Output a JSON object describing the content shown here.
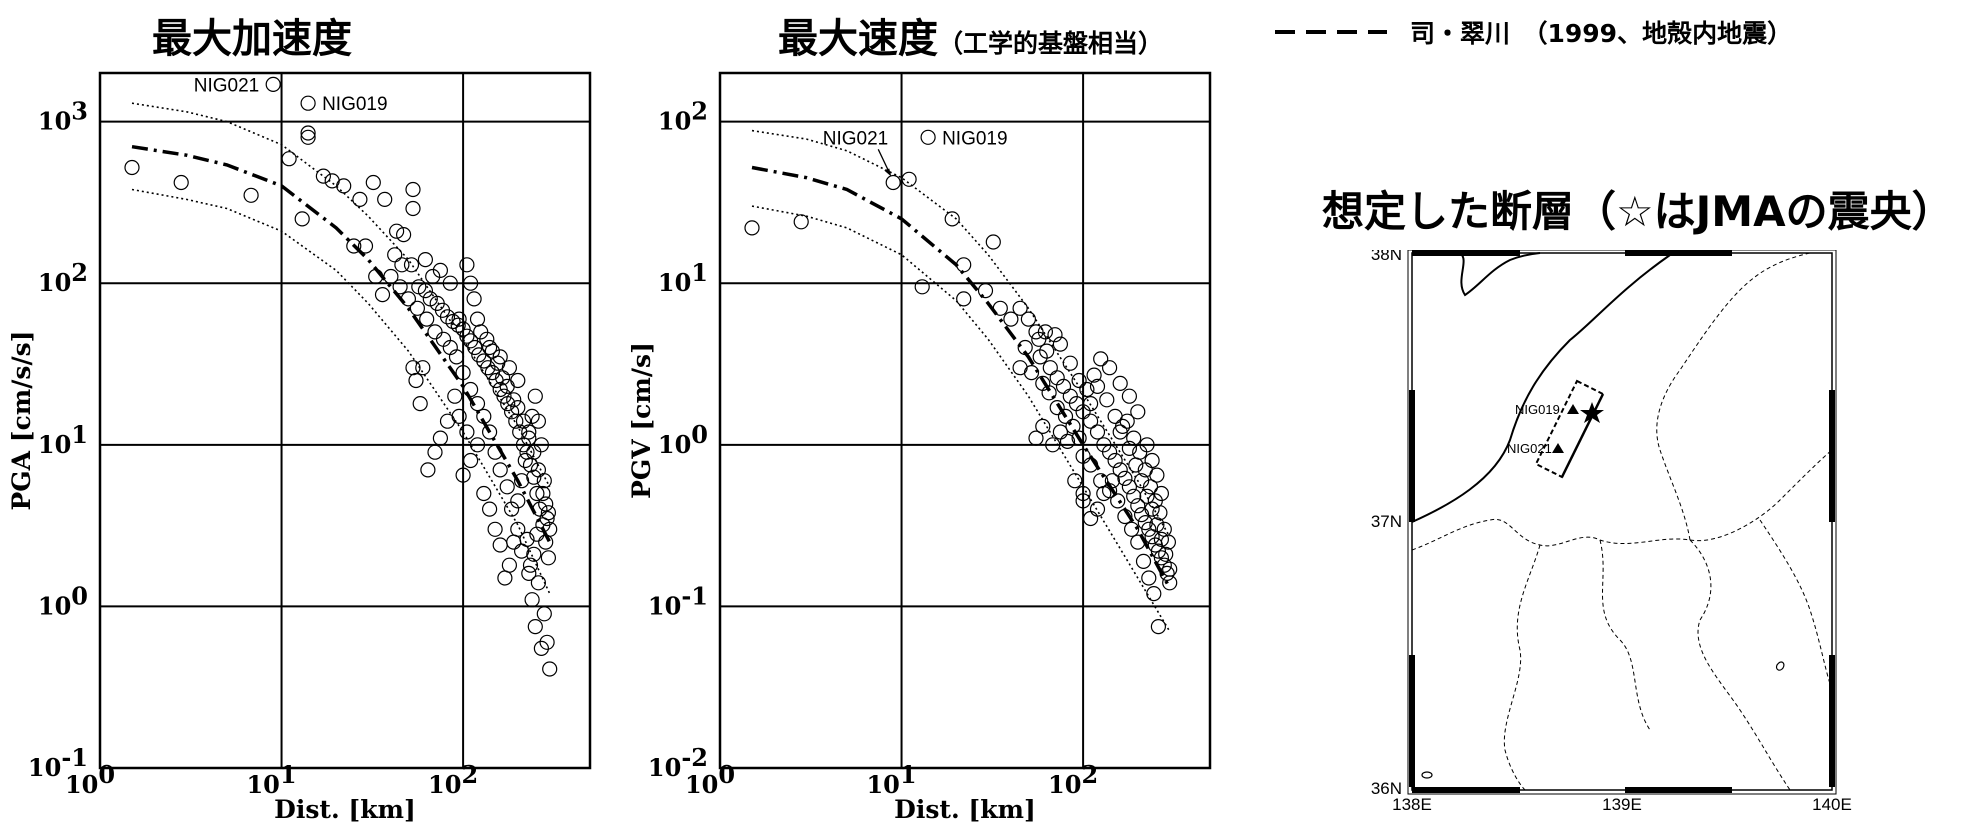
{
  "chart_data": [
    {
      "type": "scatter",
      "title": "最大加速度",
      "xlabel": "Dist. [km]",
      "ylabel": "PGA [cm/s/s]",
      "xscale": "log",
      "yscale": "log",
      "xlim": [
        1,
        500
      ],
      "ylim": [
        0.1,
        2000
      ],
      "xticks": [
        {
          "base": "10",
          "exp": "0",
          "value": 1
        },
        {
          "base": "10",
          "exp": "1",
          "value": 10
        },
        {
          "base": "10",
          "exp": "2",
          "value": 100
        }
      ],
      "yticks": [
        {
          "base": "10",
          "exp": "-1",
          "value": 0.1
        },
        {
          "base": "10",
          "exp": "0",
          "value": 1
        },
        {
          "base": "10",
          "exp": "1",
          "value": 10
        },
        {
          "base": "10",
          "exp": "2",
          "value": 100
        },
        {
          "base": "10",
          "exp": "3",
          "value": 1000
        }
      ],
      "grid": true,
      "annotations": [
        {
          "text": "NIG021",
          "x": 9,
          "y": 1700
        },
        {
          "text": "NIG019",
          "x": 14,
          "y": 1300
        }
      ],
      "curves": {
        "x": [
          1.5,
          3,
          5,
          10,
          20,
          30,
          50,
          100,
          200,
          300
        ],
        "median": [
          700,
          620,
          540,
          400,
          220,
          140,
          70,
          23,
          6,
          2.5
        ],
        "upper": [
          1300,
          1150,
          1000,
          720,
          400,
          260,
          140,
          45,
          13,
          5.5
        ],
        "lower": [
          380,
          330,
          290,
          210,
          120,
          75,
          38,
          12,
          3.2,
          1.2
        ]
      },
      "points": [
        [
          1.5,
          520
        ],
        [
          2.8,
          420
        ],
        [
          6.8,
          350
        ],
        [
          9,
          1700
        ],
        [
          14,
          1300
        ],
        [
          14,
          850
        ],
        [
          14,
          800
        ],
        [
          11,
          590
        ],
        [
          13,
          250
        ],
        [
          17,
          460
        ],
        [
          19,
          430
        ],
        [
          22,
          400
        ],
        [
          27,
          330
        ],
        [
          32,
          420
        ],
        [
          37,
          330
        ],
        [
          43,
          210
        ],
        [
          47,
          200
        ],
        [
          53,
          380
        ],
        [
          53,
          290
        ],
        [
          29,
          170
        ],
        [
          25,
          170
        ],
        [
          33,
          110
        ],
        [
          36,
          85
        ],
        [
          42,
          150
        ],
        [
          46,
          130
        ],
        [
          52,
          130
        ],
        [
          57,
          95
        ],
        [
          62,
          90
        ],
        [
          66,
          80
        ],
        [
          72,
          75
        ],
        [
          77,
          68
        ],
        [
          82,
          62
        ],
        [
          88,
          58
        ],
        [
          94,
          55
        ],
        [
          100,
          52
        ],
        [
          105,
          47
        ],
        [
          110,
          44
        ],
        [
          116,
          40
        ],
        [
          122,
          36
        ],
        [
          130,
          33
        ],
        [
          137,
          30
        ],
        [
          145,
          28
        ],
        [
          152,
          25
        ],
        [
          160,
          22
        ],
        [
          168,
          20
        ],
        [
          176,
          18
        ],
        [
          185,
          16
        ],
        [
          195,
          14
        ],
        [
          205,
          12
        ],
        [
          215,
          10
        ],
        [
          225,
          9
        ],
        [
          235,
          7.5
        ],
        [
          245,
          6.3
        ],
        [
          255,
          5
        ],
        [
          265,
          4
        ],
        [
          275,
          3.2
        ],
        [
          285,
          2.5
        ],
        [
          295,
          2
        ],
        [
          260,
          1.4
        ],
        [
          280,
          0.9
        ],
        [
          290,
          0.6
        ],
        [
          300,
          0.41
        ],
        [
          270,
          0.55
        ],
        [
          250,
          0.75
        ],
        [
          240,
          1.1
        ],
        [
          230,
          1.6
        ],
        [
          210,
          2.2
        ],
        [
          200,
          3
        ],
        [
          185,
          4
        ],
        [
          175,
          5.5
        ],
        [
          160,
          7
        ],
        [
          150,
          9
        ],
        [
          140,
          12
        ],
        [
          130,
          15
        ],
        [
          120,
          18
        ],
        [
          110,
          22
        ],
        [
          100,
          28
        ],
        [
          92,
          35
        ],
        [
          85,
          40
        ],
        [
          78,
          45
        ],
        [
          70,
          50
        ],
        [
          63,
          60
        ],
        [
          56,
          70
        ],
        [
          50,
          80
        ],
        [
          45,
          95
        ],
        [
          40,
          110
        ],
        [
          90,
          20
        ],
        [
          82,
          14
        ],
        [
          75,
          11
        ],
        [
          70,
          9
        ],
        [
          64,
          7
        ],
        [
          58,
          18
        ],
        [
          55,
          25
        ],
        [
          53,
          30
        ],
        [
          60,
          30
        ],
        [
          100,
          6.5
        ],
        [
          110,
          8
        ],
        [
          120,
          10
        ],
        [
          105,
          12
        ],
        [
          95,
          15
        ],
        [
          130,
          5
        ],
        [
          140,
          4
        ],
        [
          150,
          3
        ],
        [
          160,
          2.4
        ],
        [
          170,
          1.5
        ],
        [
          180,
          1.8
        ],
        [
          190,
          2.5
        ],
        [
          200,
          4.5
        ],
        [
          210,
          6
        ],
        [
          220,
          8
        ],
        [
          230,
          12
        ],
        [
          240,
          15
        ],
        [
          250,
          20
        ],
        [
          260,
          14
        ],
        [
          270,
          10
        ],
        [
          280,
          6
        ],
        [
          290,
          3.5
        ],
        [
          300,
          3
        ],
        [
          200,
          25
        ],
        [
          180,
          30
        ],
        [
          160,
          35
        ],
        [
          140,
          40
        ],
        [
          120,
          60
        ],
        [
          115,
          80
        ],
        [
          105,
          130
        ],
        [
          95,
          60
        ],
        [
          85,
          100
        ],
        [
          75,
          120
        ],
        [
          68,
          110
        ],
        [
          62,
          140
        ],
        [
          110,
          100
        ],
        [
          125,
          50
        ],
        [
          135,
          45
        ],
        [
          145,
          38
        ],
        [
          155,
          32
        ],
        [
          165,
          26
        ],
        [
          175,
          23
        ],
        [
          190,
          19
        ],
        [
          200,
          17
        ],
        [
          215,
          14
        ],
        [
          230,
          11
        ],
        [
          245,
          9
        ],
        [
          260,
          7
        ],
        [
          275,
          5
        ],
        [
          285,
          4.3
        ],
        [
          295,
          3.8
        ],
        [
          255,
          2.8
        ],
        [
          245,
          2.1
        ],
        [
          235,
          1.8
        ],
        [
          225,
          2.6
        ]
      ]
    },
    {
      "type": "scatter",
      "title": "最大速度",
      "subtitle": "（工学的基盤相当）",
      "xlabel": "Dist. [km]",
      "ylabel": "PGV [cm/s]",
      "xscale": "log",
      "yscale": "log",
      "xlim": [
        1,
        500
      ],
      "ylim": [
        0.01,
        200
      ],
      "xticks": [
        {
          "base": "10",
          "exp": "0",
          "value": 1
        },
        {
          "base": "10",
          "exp": "1",
          "value": 10
        },
        {
          "base": "10",
          "exp": "2",
          "value": 100
        }
      ],
      "yticks": [
        {
          "base": "10",
          "exp": "-2",
          "value": 0.01
        },
        {
          "base": "10",
          "exp": "-1",
          "value": 0.1
        },
        {
          "base": "10",
          "exp": "0",
          "value": 1
        },
        {
          "base": "10",
          "exp": "1",
          "value": 10
        },
        {
          "base": "10",
          "exp": "2",
          "value": 100
        }
      ],
      "grid": true,
      "annotations": [
        {
          "text": "NIG021",
          "x": 9,
          "y": 42
        },
        {
          "text": "NIG019",
          "x": 14,
          "y": 80
        }
      ],
      "curves": {
        "x": [
          1.5,
          3,
          5,
          10,
          20,
          30,
          50,
          100,
          200,
          300
        ],
        "median": [
          52,
          45,
          38,
          25,
          13,
          7.5,
          3.5,
          1.0,
          0.3,
          0.13
        ],
        "upper": [
          88,
          78,
          66,
          45,
          25,
          15,
          7,
          2.1,
          0.6,
          0.27
        ],
        "lower": [
          30,
          26,
          22,
          15,
          7.8,
          4.5,
          2,
          0.55,
          0.15,
          0.07
        ]
      },
      "points": [
        [
          1.5,
          22
        ],
        [
          2.8,
          24
        ],
        [
          9,
          42
        ],
        [
          11,
          44
        ],
        [
          14,
          80
        ],
        [
          13,
          9.5
        ],
        [
          19,
          25
        ],
        [
          22,
          13
        ],
        [
          22,
          8
        ],
        [
          32,
          18
        ],
        [
          29,
          9
        ],
        [
          35,
          7
        ],
        [
          40,
          6
        ],
        [
          45,
          7
        ],
        [
          50,
          6
        ],
        [
          55,
          5
        ],
        [
          62,
          5
        ],
        [
          48,
          4
        ],
        [
          45,
          3
        ],
        [
          52,
          2.8
        ],
        [
          58,
          3.5
        ],
        [
          66,
          3
        ],
        [
          72,
          2.6
        ],
        [
          78,
          2.3
        ],
        [
          85,
          2
        ],
        [
          92,
          1.8
        ],
        [
          100,
          1.6
        ],
        [
          110,
          1.4
        ],
        [
          120,
          1.2
        ],
        [
          130,
          1.0
        ],
        [
          140,
          0.9
        ],
        [
          150,
          0.8
        ],
        [
          160,
          0.7
        ],
        [
          170,
          0.62
        ],
        [
          180,
          0.55
        ],
        [
          190,
          0.48
        ],
        [
          200,
          0.42
        ],
        [
          210,
          0.37
        ],
        [
          220,
          0.33
        ],
        [
          230,
          0.3
        ],
        [
          240,
          0.27
        ],
        [
          250,
          0.24
        ],
        [
          260,
          0.22
        ],
        [
          270,
          0.2
        ],
        [
          280,
          0.18
        ],
        [
          290,
          0.16
        ],
        [
          300,
          0.14
        ],
        [
          260,
          0.075
        ],
        [
          245,
          0.12
        ],
        [
          230,
          0.15
        ],
        [
          215,
          0.19
        ],
        [
          200,
          0.25
        ],
        [
          185,
          0.3
        ],
        [
          170,
          0.36
        ],
        [
          155,
          0.45
        ],
        [
          140,
          0.52
        ],
        [
          125,
          0.6
        ],
        [
          110,
          0.75
        ],
        [
          100,
          0.85
        ],
        [
          95,
          1.1
        ],
        [
          88,
          1.3
        ],
        [
          80,
          1.5
        ],
        [
          72,
          1.7
        ],
        [
          65,
          2.1
        ],
        [
          60,
          2.4
        ],
        [
          55,
          1.1
        ],
        [
          60,
          1.3
        ],
        [
          68,
          1.0
        ],
        [
          75,
          1.2
        ],
        [
          82,
          1.05
        ],
        [
          90,
          0.6
        ],
        [
          100,
          0.45
        ],
        [
          100,
          0.5
        ],
        [
          110,
          0.35
        ],
        [
          120,
          0.4
        ],
        [
          130,
          0.5
        ],
        [
          145,
          0.6
        ],
        [
          160,
          1.2
        ],
        [
          175,
          1.4
        ],
        [
          190,
          1.1
        ],
        [
          205,
          0.9
        ],
        [
          220,
          0.7
        ],
        [
          235,
          0.55
        ],
        [
          250,
          0.45
        ],
        [
          265,
          0.38
        ],
        [
          280,
          0.3
        ],
        [
          295,
          0.25
        ],
        [
          270,
          0.5
        ],
        [
          255,
          0.65
        ],
        [
          240,
          0.8
        ],
        [
          225,
          1.0
        ],
        [
          200,
          1.6
        ],
        [
          180,
          2.0
        ],
        [
          160,
          2.4
        ],
        [
          140,
          3.0
        ],
        [
          125,
          3.4
        ],
        [
          115,
          2.7
        ],
        [
          105,
          2.2
        ],
        [
          95,
          2.5
        ],
        [
          85,
          3.2
        ],
        [
          75,
          4.2
        ],
        [
          70,
          4.8
        ],
        [
          63,
          3.8
        ],
        [
          57,
          4.5
        ],
        [
          110,
          1.8
        ],
        [
          120,
          2.3
        ],
        [
          135,
          1.9
        ],
        [
          150,
          1.5
        ],
        [
          165,
          1.3
        ],
        [
          180,
          0.95
        ],
        [
          195,
          0.75
        ],
        [
          210,
          0.6
        ],
        [
          225,
          0.48
        ],
        [
          240,
          0.4
        ],
        [
          255,
          0.32
        ],
        [
          270,
          0.26
        ],
        [
          285,
          0.21
        ],
        [
          300,
          0.17
        ]
      ]
    }
  ],
  "legend": {
    "text": "司・翠川　（1999、地殻内地震）"
  },
  "map": {
    "title": "想定した断層（☆はJMAの震央）",
    "lat_labels": [
      "38N",
      "37N",
      "36N"
    ],
    "lon_labels": [
      "138E",
      "139E",
      "140E"
    ],
    "station_labels": [
      "NIG019",
      "NIG021"
    ]
  }
}
